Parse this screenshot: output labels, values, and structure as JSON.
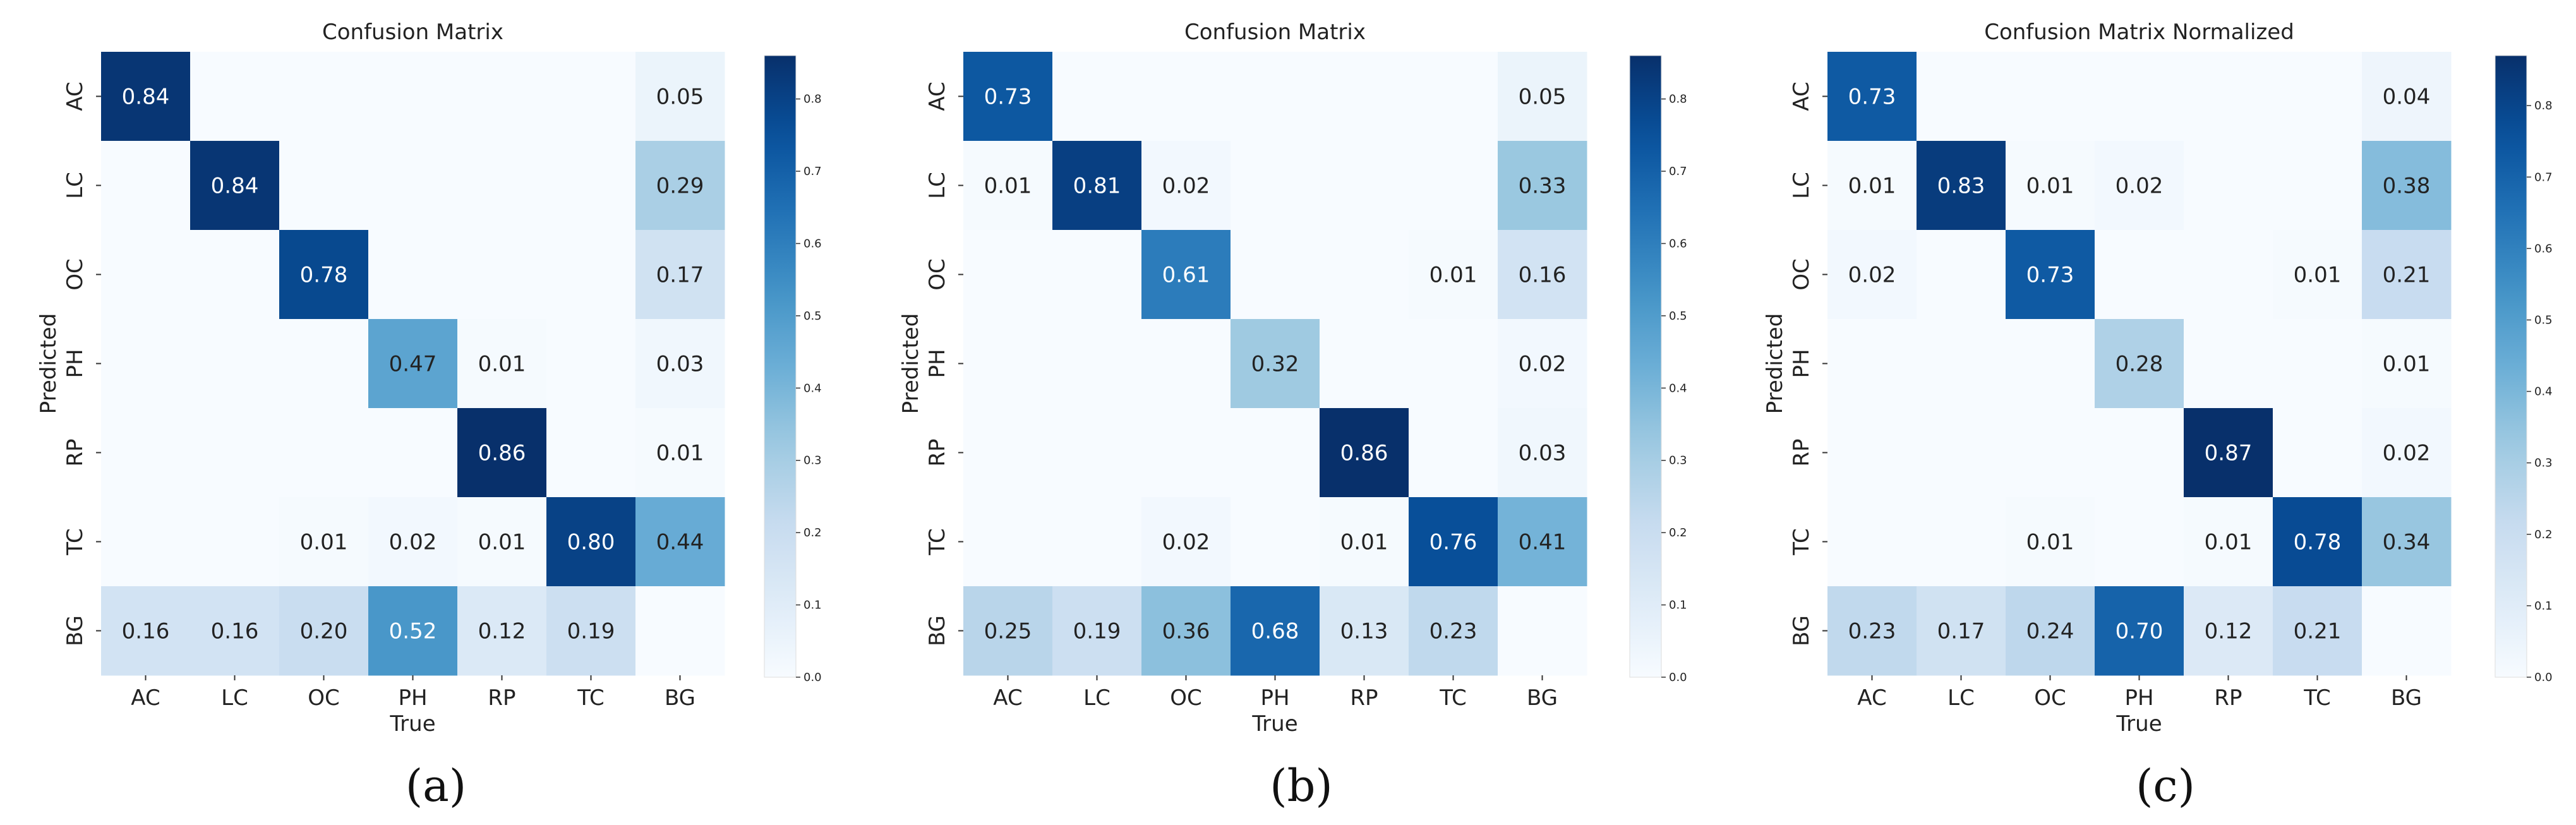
{
  "chart_data": [
    {
      "type": "heatmap",
      "panel_label": "(a)",
      "title": "Confusion Matrix",
      "xlabel": "True",
      "ylabel": "Predicted",
      "x_categories": [
        "AC",
        "LC",
        "OC",
        "PH",
        "RP",
        "TC",
        "BG"
      ],
      "y_categories": [
        "AC",
        "LC",
        "OC",
        "PH",
        "RP",
        "TC",
        "BG"
      ],
      "values": [
        [
          0.84,
          0,
          0,
          0,
          0,
          0,
          0.05
        ],
        [
          0,
          0.84,
          0,
          0,
          0,
          0,
          0.29
        ],
        [
          0,
          0,
          0.78,
          0,
          0,
          0,
          0.17
        ],
        [
          0,
          0,
          0,
          0.47,
          0.01,
          0,
          0.03
        ],
        [
          0,
          0,
          0,
          0,
          0.86,
          0,
          0.01
        ],
        [
          0,
          0,
          0.01,
          0.02,
          0.01,
          0.8,
          0.44
        ],
        [
          0.16,
          0.16,
          0.2,
          0.52,
          0.12,
          0.19,
          0
        ]
      ],
      "colorbar": {
        "min": 0.0,
        "max": 0.86,
        "ticks": [
          "0.0",
          "0.1",
          "0.2",
          "0.3",
          "0.4",
          "0.5",
          "0.6",
          "0.7",
          "0.8"
        ]
      }
    },
    {
      "type": "heatmap",
      "panel_label": "(b)",
      "title": "Confusion Matrix",
      "xlabel": "True",
      "ylabel": "Predicted",
      "x_categories": [
        "AC",
        "LC",
        "OC",
        "PH",
        "RP",
        "TC",
        "BG"
      ],
      "y_categories": [
        "AC",
        "LC",
        "OC",
        "PH",
        "RP",
        "TC",
        "BG"
      ],
      "values": [
        [
          0.73,
          0,
          0,
          0,
          0,
          0,
          0.05
        ],
        [
          0.01,
          0.81,
          0.02,
          0,
          0,
          0,
          0.33
        ],
        [
          0,
          0,
          0.61,
          0,
          0,
          0.01,
          0.16
        ],
        [
          0,
          0,
          0,
          0.32,
          0,
          0,
          0.02
        ],
        [
          0,
          0,
          0,
          0,
          0.86,
          0,
          0.03
        ],
        [
          0,
          0,
          0.02,
          0,
          0.01,
          0.76,
          0.41
        ],
        [
          0.25,
          0.19,
          0.36,
          0.68,
          0.13,
          0.23,
          0
        ]
      ],
      "colorbar": {
        "min": 0.0,
        "max": 0.86,
        "ticks": [
          "0.0",
          "0.1",
          "0.2",
          "0.3",
          "0.4",
          "0.5",
          "0.6",
          "0.7",
          "0.8"
        ]
      }
    },
    {
      "type": "heatmap",
      "panel_label": "(c)",
      "title": "Confusion Matrix Normalized",
      "xlabel": "True",
      "ylabel": "Predicted",
      "x_categories": [
        "AC",
        "LC",
        "OC",
        "PH",
        "RP",
        "TC",
        "BG"
      ],
      "y_categories": [
        "AC",
        "LC",
        "OC",
        "PH",
        "RP",
        "TC",
        "BG"
      ],
      "values": [
        [
          0.73,
          0,
          0,
          0,
          0,
          0,
          0.04
        ],
        [
          0.01,
          0.83,
          0.01,
          0.02,
          0,
          0,
          0.38
        ],
        [
          0.02,
          0,
          0.73,
          0,
          0,
          0.01,
          0.21
        ],
        [
          0,
          0,
          0,
          0.28,
          0,
          0,
          0.01
        ],
        [
          0,
          0,
          0,
          0,
          0.87,
          0,
          0.02
        ],
        [
          0,
          0,
          0.01,
          0,
          0.01,
          0.78,
          0.34
        ],
        [
          0.23,
          0.17,
          0.24,
          0.7,
          0.12,
          0.21,
          0
        ]
      ],
      "colorbar": {
        "min": 0.0,
        "max": 0.87,
        "ticks": [
          "0.0",
          "0.1",
          "0.2",
          "0.3",
          "0.4",
          "0.5",
          "0.6",
          "0.7",
          "0.8"
        ]
      }
    }
  ]
}
